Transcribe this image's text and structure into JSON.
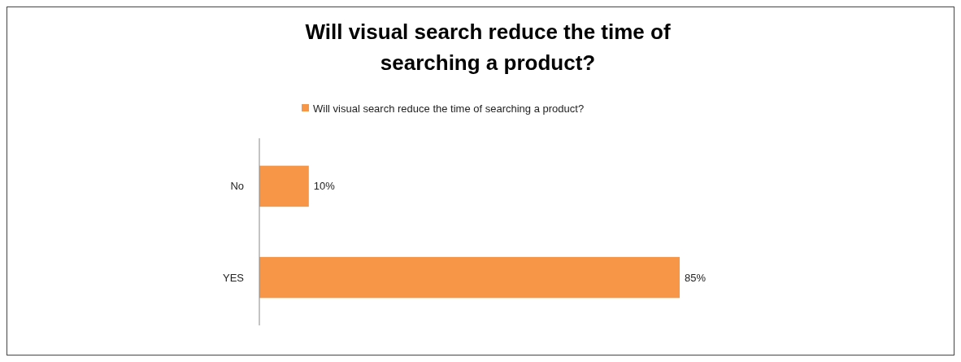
{
  "chart_data": {
    "type": "bar",
    "orientation": "horizontal",
    "title": "Will visual search reduce the time of searching a product?",
    "categories": [
      "No",
      "YES"
    ],
    "series": [
      {
        "name": "Will visual search reduce the time of searching a product?",
        "color": "#f79646",
        "values": [
          10,
          85
        ],
        "value_labels": [
          "10%",
          "85%"
        ]
      }
    ],
    "legend": "top"
  }
}
